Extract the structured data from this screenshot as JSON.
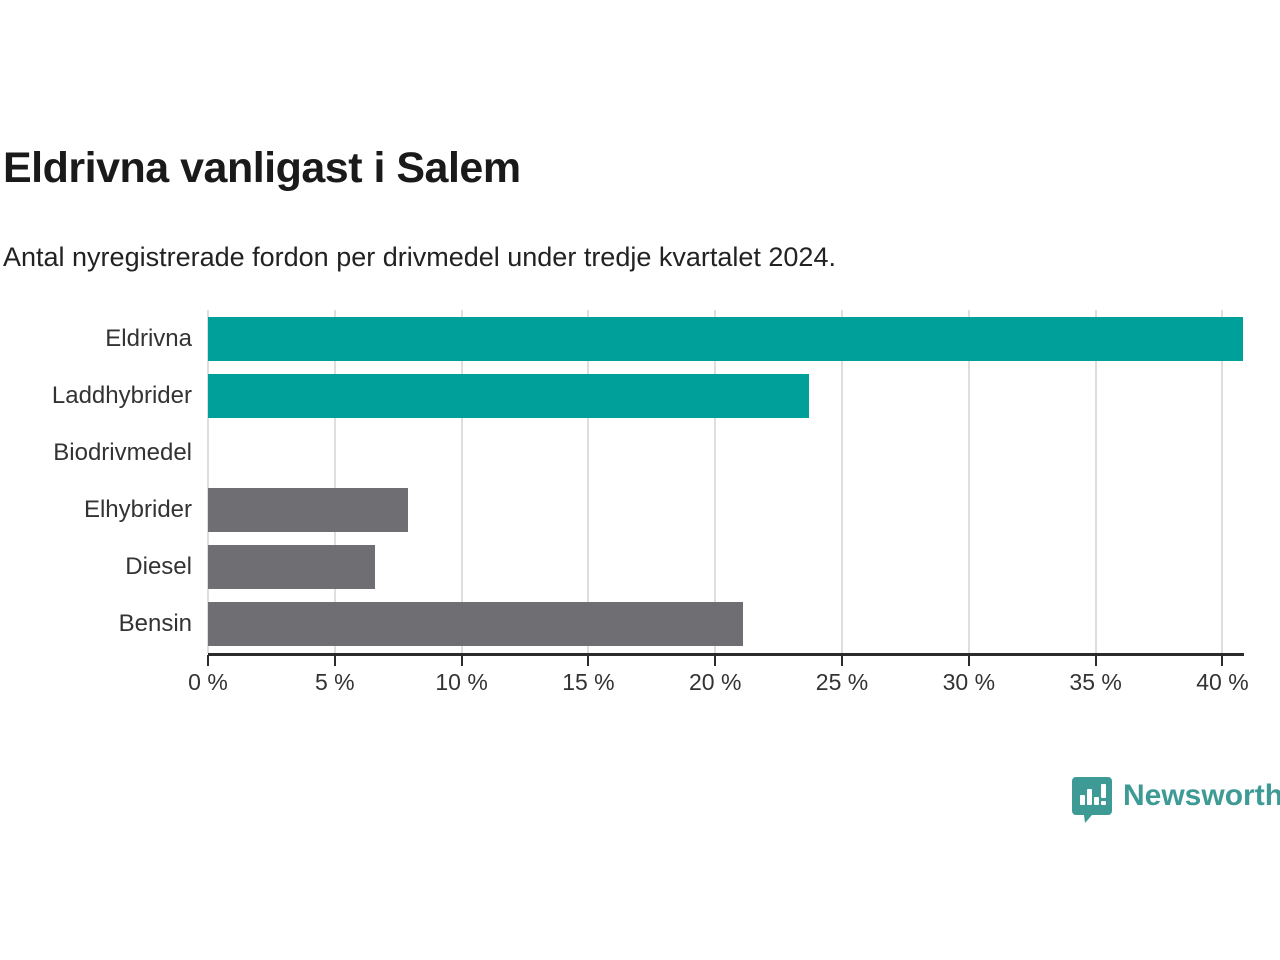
{
  "header": {
    "title": "Eldrivna vanligast i Salem",
    "subtitle": "Antal nyregistrerade fordon per drivmedel under tredje kvartalet 2024."
  },
  "branding": {
    "logo_text": "Newsworthy",
    "logo_color": "#3d9a95"
  },
  "colors": {
    "highlight_bar": "#00a09a",
    "default_bar": "#6e6e73",
    "gridline": "#dedede",
    "axis": "#2b2b2b",
    "title_text": "#1a1a1a",
    "label_text": "#333333"
  },
  "chart_data": {
    "type": "bar",
    "orientation": "horizontal",
    "title": "Eldrivna vanligast i Salem",
    "subtitle": "Antal nyregistrerade fordon per drivmedel under tredje kvartalet 2024.",
    "categories": [
      "Eldrivna",
      "Laddhybrider",
      "Biodrivmedel",
      "Elhybrider",
      "Diesel",
      "Bensin"
    ],
    "values": [
      40.8,
      23.7,
      0,
      7.9,
      6.6,
      21.1
    ],
    "bar_colors": [
      "#00a09a",
      "#00a09a",
      "#6e6e73",
      "#6e6e73",
      "#6e6e73",
      "#6e6e73"
    ],
    "value_unit": "%",
    "xlabel": "",
    "ylabel": "",
    "xlim": [
      0,
      40.85
    ],
    "xticks": [
      0,
      5,
      10,
      15,
      20,
      25,
      30,
      35,
      40
    ],
    "xtick_labels": [
      "0 %",
      "5 %",
      "10 %",
      "15 %",
      "20 %",
      "25 %",
      "30 %",
      "35 %",
      "40 %"
    ],
    "grid": true,
    "legend": false
  }
}
